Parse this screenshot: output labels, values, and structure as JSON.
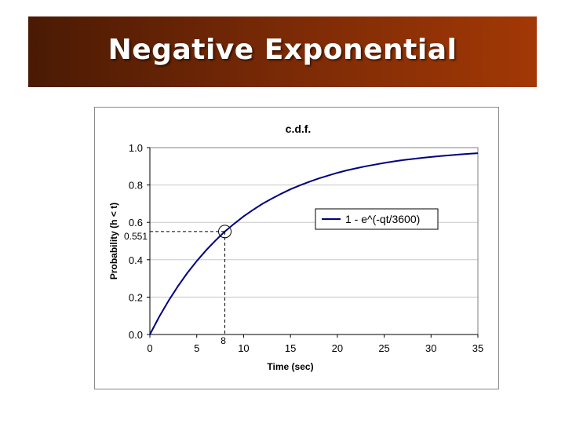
{
  "slide": {
    "title": "Negative Exponential"
  },
  "chart_data": {
    "type": "line",
    "title": "c.d.f.",
    "xlabel": "Time (sec)",
    "ylabel": "Probability (h < t)",
    "xlim": [
      0,
      35
    ],
    "ylim": [
      0.0,
      1.0
    ],
    "x_ticks": [
      0,
      5,
      10,
      15,
      20,
      25,
      30,
      35
    ],
    "x_tick_labels": [
      "0",
      "5",
      "10",
      "15",
      "20",
      "25",
      "30",
      "35"
    ],
    "y_ticks": [
      0.0,
      0.2,
      0.4,
      0.6,
      0.8,
      1.0
    ],
    "y_tick_labels": [
      "0.0",
      "0.2",
      "0.4",
      "0.6",
      "0.8",
      "1.0"
    ],
    "legend": {
      "placement": "right",
      "entries": [
        "1 - e^(-qt/3600)"
      ]
    },
    "series": [
      {
        "name": "1 - e^(-qt/3600)",
        "color": "#000080",
        "x": [
          0,
          1,
          2,
          3,
          4,
          5,
          6,
          7,
          8,
          9,
          10,
          11,
          12,
          13,
          14,
          15,
          16,
          17,
          18,
          19,
          20,
          21,
          22,
          23,
          24,
          25,
          26,
          27,
          28,
          29,
          30,
          31,
          32,
          33,
          34,
          35
        ],
        "y": [
          0.0,
          0.095,
          0.181,
          0.259,
          0.33,
          0.393,
          0.451,
          0.503,
          0.551,
          0.593,
          0.632,
          0.667,
          0.699,
          0.727,
          0.753,
          0.777,
          0.798,
          0.817,
          0.835,
          0.85,
          0.865,
          0.878,
          0.889,
          0.9,
          0.909,
          0.918,
          0.926,
          0.933,
          0.939,
          0.945,
          0.95,
          0.955,
          0.959,
          0.963,
          0.967,
          0.97
        ]
      }
    ],
    "annotation": {
      "x": 8,
      "y": 0.551,
      "x_label": "8",
      "y_label": "0.551"
    },
    "grid": "horizontal"
  }
}
